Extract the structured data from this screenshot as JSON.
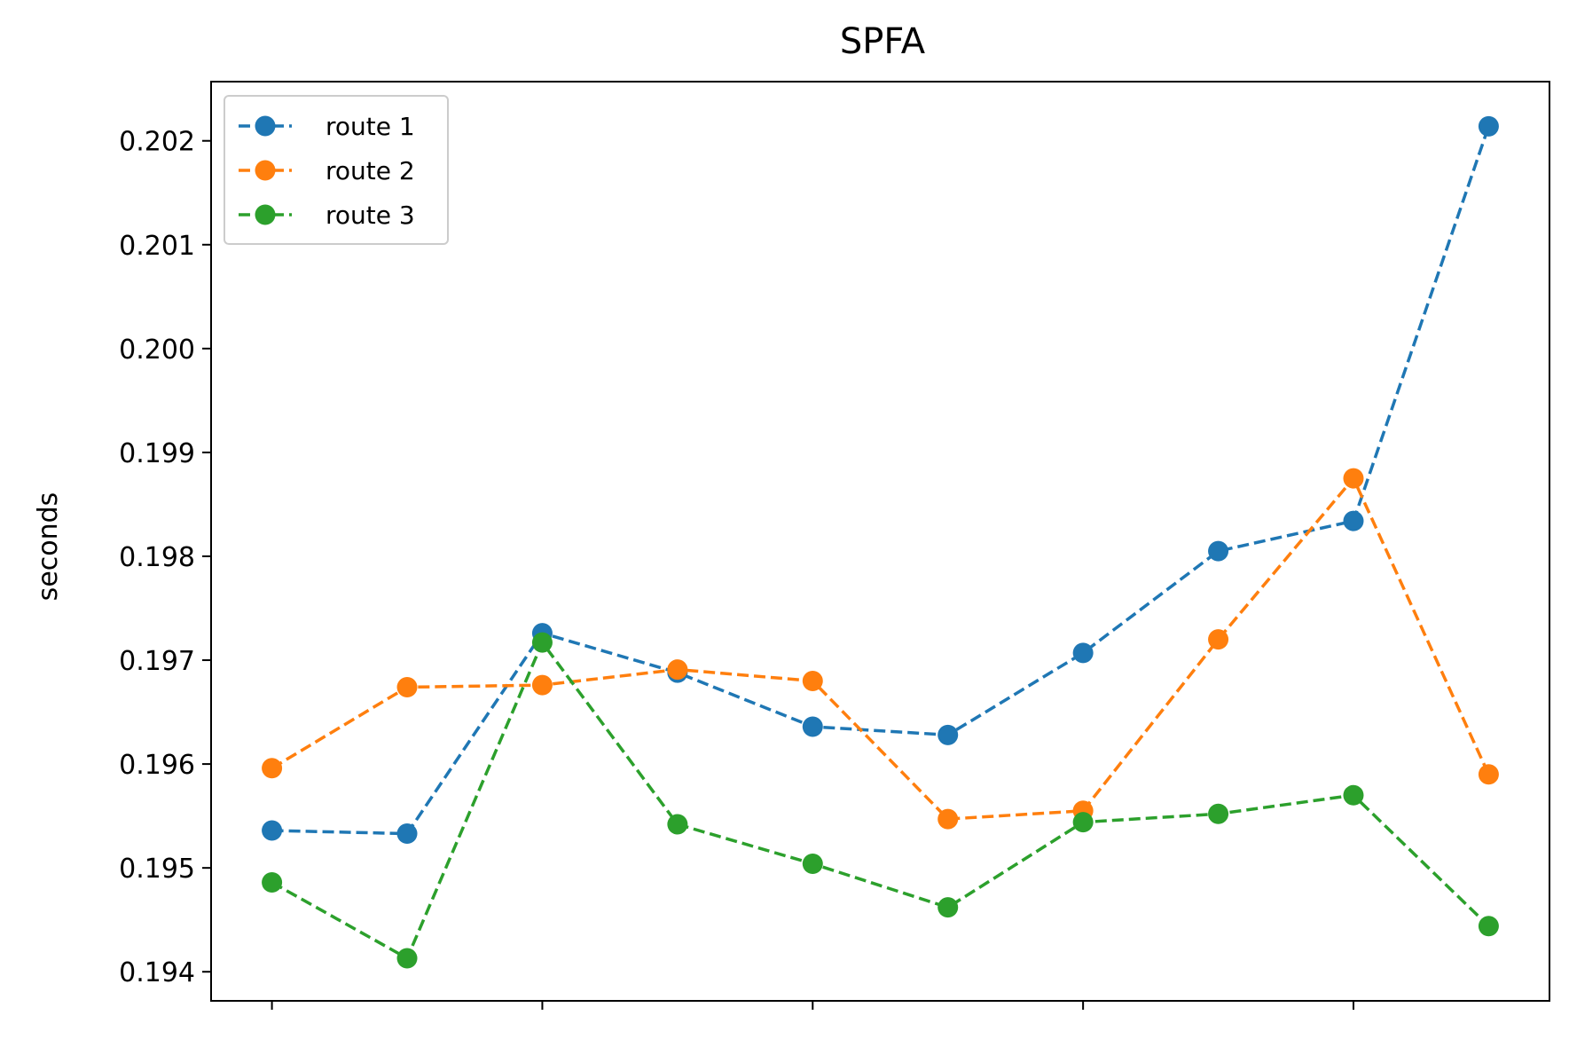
{
  "chart_data": {
    "type": "line",
    "title": "SPFA",
    "xlabel": "",
    "ylabel": "seconds",
    "x": [
      0,
      1,
      2,
      3,
      4,
      5,
      6,
      7,
      8,
      9
    ],
    "xlim": [
      -0.45,
      9.45
    ],
    "ylim": [
      0.19372,
      0.20257
    ],
    "x_ticks": [
      0,
      2,
      4,
      6,
      8
    ],
    "x_tick_labels": [
      "",
      "",
      "",
      "",
      ""
    ],
    "y_ticks": [
      0.194,
      0.195,
      0.196,
      0.197,
      0.198,
      0.199,
      0.2,
      0.201,
      0.202
    ],
    "y_tick_labels": [
      "0.194",
      "0.195",
      "0.196",
      "0.197",
      "0.198",
      "0.199",
      "0.200",
      "0.201",
      "0.202"
    ],
    "grid": false,
    "legend": "top-left",
    "series": [
      {
        "name": "route 1",
        "color": "#1f77b4",
        "linestyle": "dashed",
        "marker": "circle",
        "values": [
          0.19536,
          0.19533,
          0.19726,
          0.19688,
          0.19636,
          0.19628,
          0.19707,
          0.19805,
          0.19834,
          0.20214
        ]
      },
      {
        "name": "route 2",
        "color": "#ff7f0e",
        "linestyle": "dashed",
        "marker": "circle",
        "values": [
          0.19596,
          0.19674,
          0.19676,
          0.19691,
          0.1968,
          0.19547,
          0.19555,
          0.1972,
          0.19875,
          0.1959
        ]
      },
      {
        "name": "route 3",
        "color": "#2ca02c",
        "linestyle": "dashed",
        "marker": "circle",
        "values": [
          0.19486,
          0.19413,
          0.19717,
          0.19542,
          0.19504,
          0.19462,
          0.19544,
          0.19552,
          0.1957,
          0.19444
        ]
      }
    ]
  }
}
